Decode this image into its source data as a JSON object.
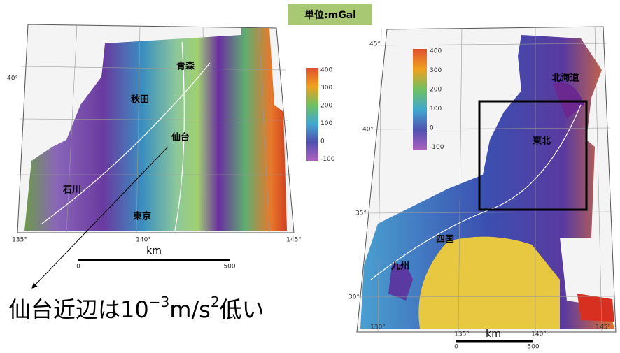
{
  "unit_label": "単位:mGal",
  "left_map": {
    "lat_labels": [
      "40°"
    ],
    "lon_labels": [
      "135°",
      "140°",
      "145°"
    ],
    "colorbar_ticks": [
      400,
      300,
      200,
      100,
      0,
      -100
    ],
    "places": [
      "青森",
      "秋田",
      "仙台",
      "石川",
      "東京"
    ],
    "scale": {
      "unit": "km",
      "start": "0",
      "end": "500"
    }
  },
  "right_map": {
    "lat_labels": [
      "45°",
      "40°",
      "35°",
      "30°"
    ],
    "lon_labels": [
      "130°",
      "135°",
      "140°",
      "145°"
    ],
    "colorbar_ticks": [
      400,
      300,
      200,
      100,
      0,
      -100
    ],
    "places": [
      "北海道",
      "東北",
      "四国",
      "九州"
    ],
    "scale": {
      "unit": "km",
      "start": "0",
      "end": "500"
    }
  },
  "caption": {
    "parts": [
      "仙台近辺は10",
      "−3",
      "m/s",
      "2",
      "低い"
    ]
  }
}
